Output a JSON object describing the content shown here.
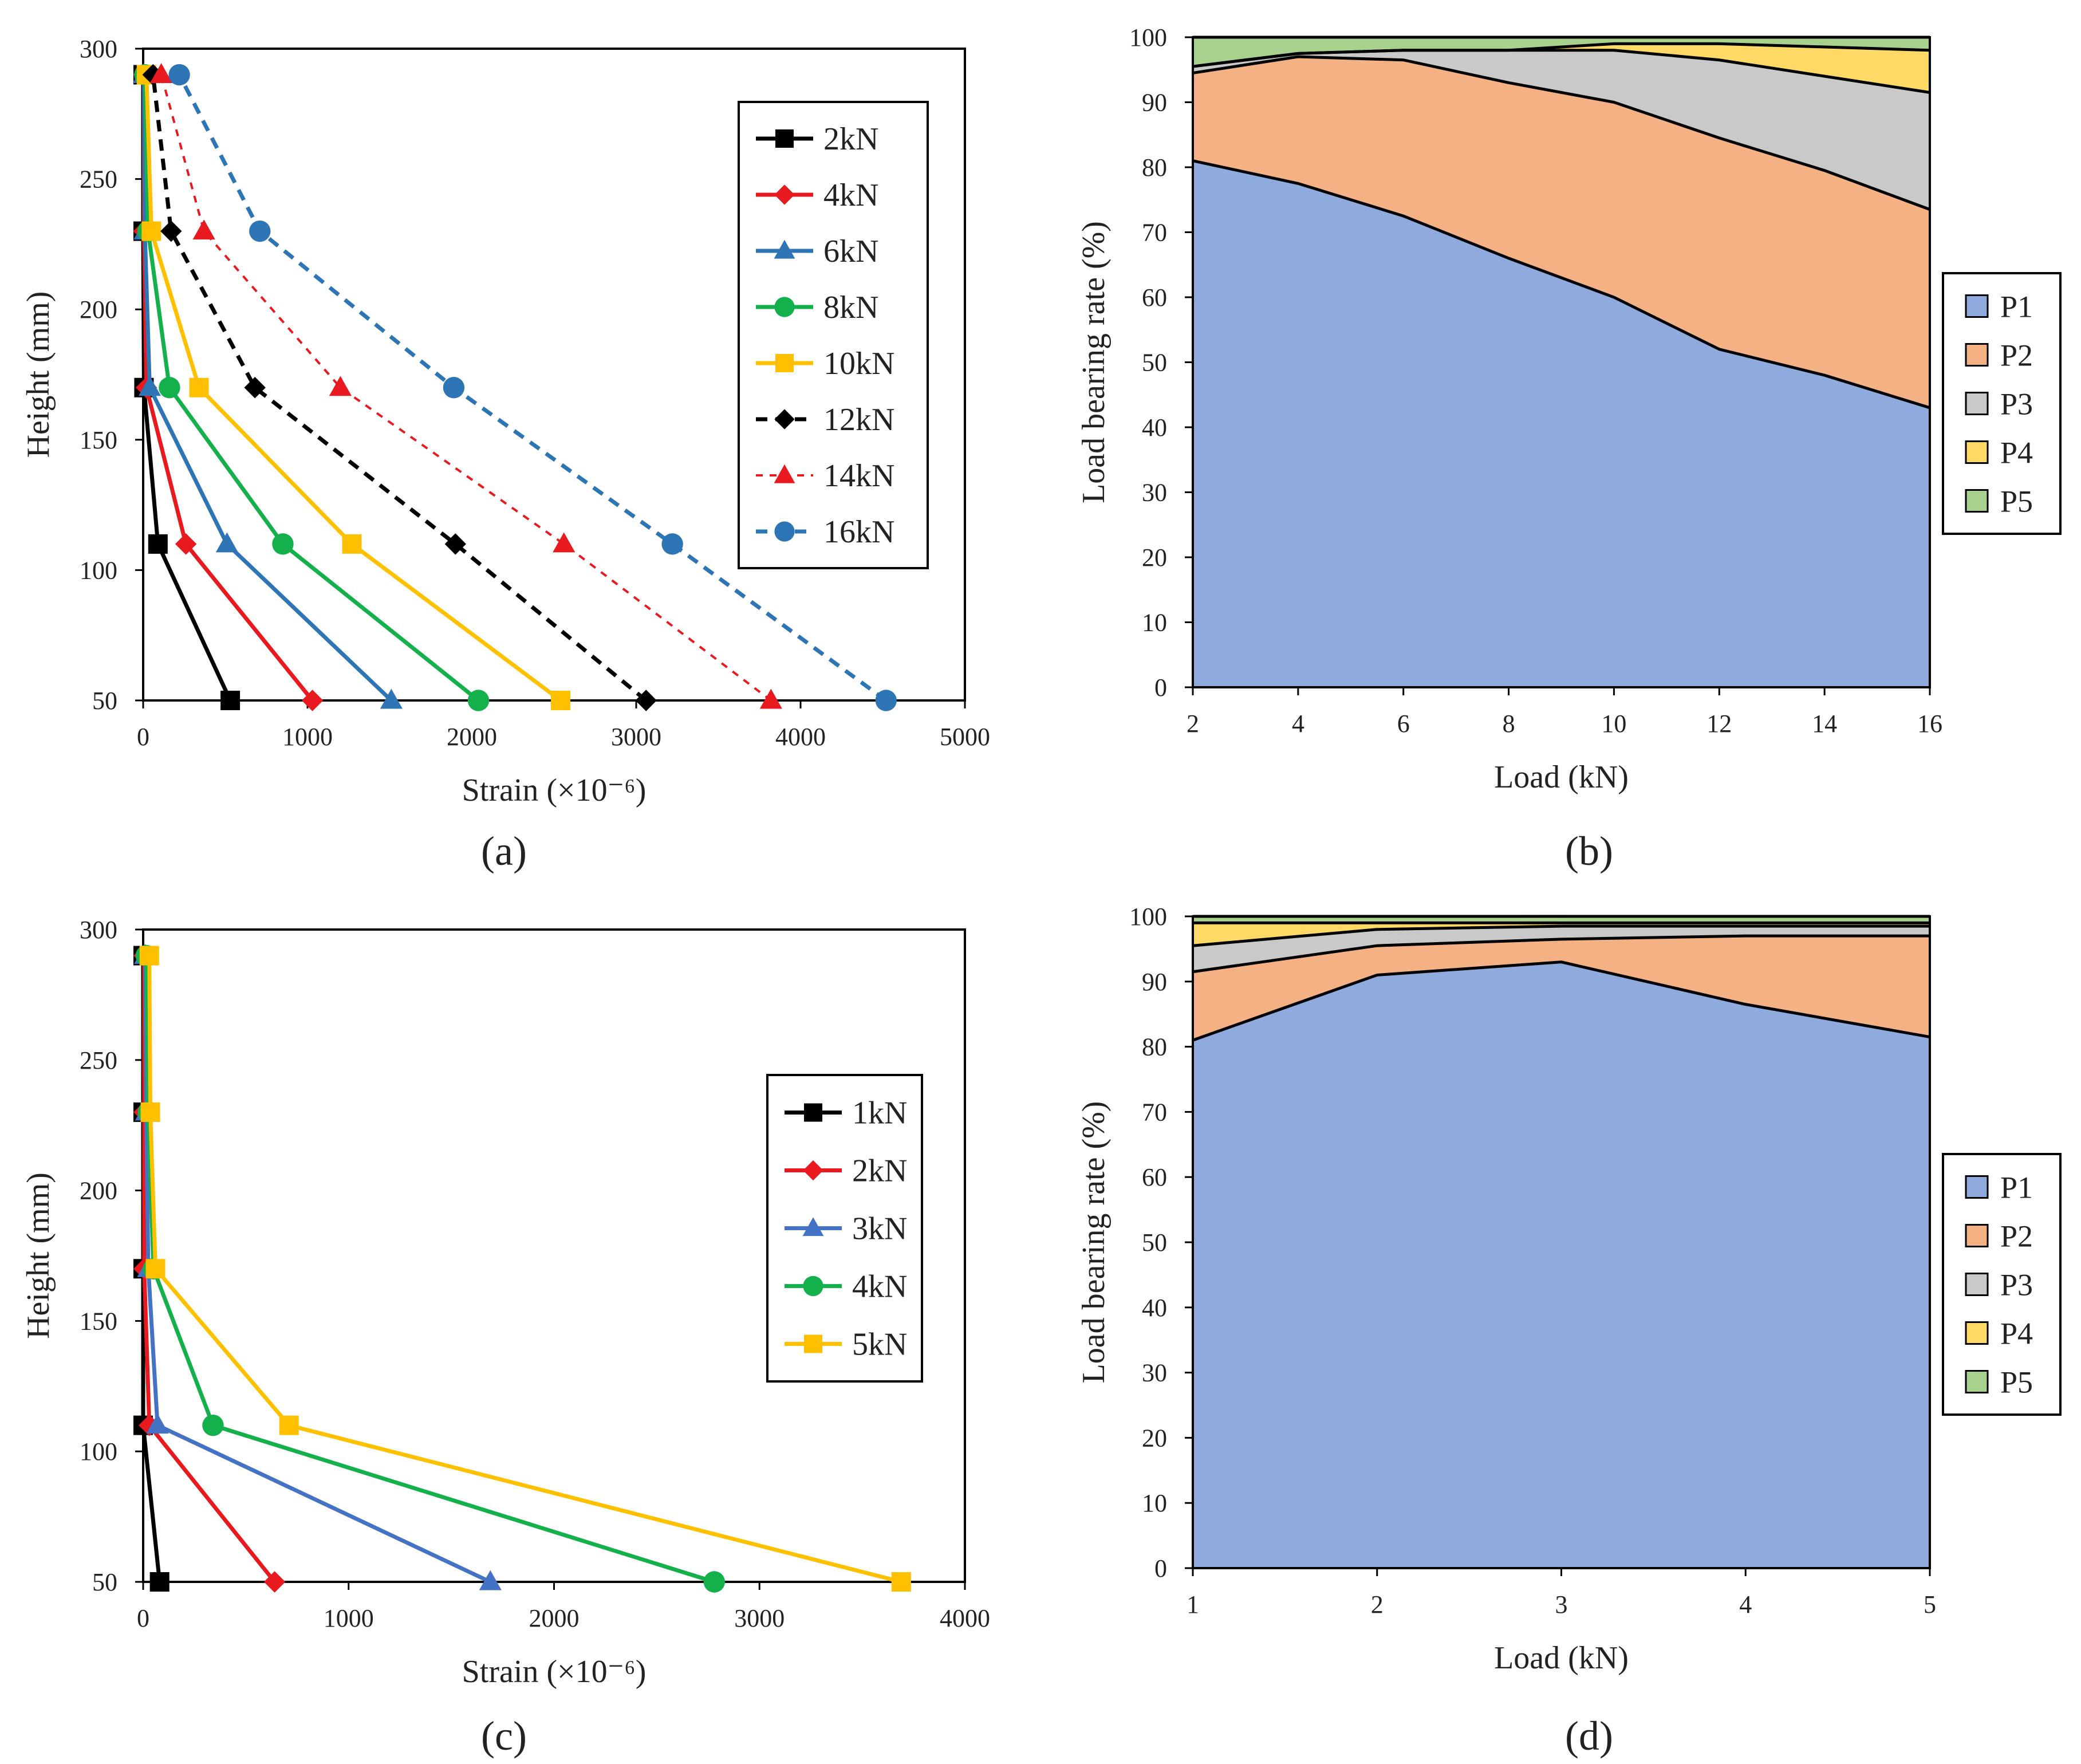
{
  "figure": {
    "panel_labels": [
      "(a)",
      "(b)",
      "(c)",
      "(d)"
    ]
  },
  "chart_data": [
    {
      "panel": "a",
      "type": "line",
      "xlabel": "Strain (×10⁻⁶)",
      "ylabel": "Height (mm)",
      "xlim": [
        0,
        5000
      ],
      "ylim": [
        50,
        300
      ],
      "xticks": [
        0,
        1000,
        2000,
        3000,
        4000,
        5000
      ],
      "yticks": [
        50,
        100,
        150,
        200,
        250,
        300
      ],
      "legend_position": "top-right",
      "series": [
        {
          "name": "2kN",
          "color": "#000000",
          "marker": "square",
          "dashed": false,
          "points": [
            [
              530,
              50
            ],
            [
              90,
              110
            ],
            [
              5,
              170
            ],
            [
              0,
              230
            ],
            [
              0,
              290
            ]
          ]
        },
        {
          "name": "4kN",
          "color": "#e8191f",
          "marker": "diamond",
          "dashed": false,
          "points": [
            [
              1030,
              50
            ],
            [
              260,
              110
            ],
            [
              20,
              170
            ],
            [
              5,
              230
            ],
            [
              5,
              290
            ]
          ]
        },
        {
          "name": "6kN",
          "color": "#2e75b6",
          "marker": "triangle",
          "dashed": false,
          "points": [
            [
              1510,
              50
            ],
            [
              510,
              110
            ],
            [
              40,
              170
            ],
            [
              10,
              230
            ],
            [
              5,
              290
            ]
          ]
        },
        {
          "name": "8kN",
          "color": "#13b04b",
          "marker": "circle",
          "dashed": false,
          "points": [
            [
              2040,
              50
            ],
            [
              850,
              110
            ],
            [
              160,
              170
            ],
            [
              30,
              230
            ],
            [
              10,
              290
            ]
          ]
        },
        {
          "name": "10kN",
          "color": "#ffc000",
          "marker": "square",
          "dashed": false,
          "points": [
            [
              2540,
              50
            ],
            [
              1270,
              110
            ],
            [
              340,
              170
            ],
            [
              50,
              230
            ],
            [
              20,
              290
            ]
          ]
        },
        {
          "name": "12kN",
          "color": "#000000",
          "marker": "diamond",
          "dashed": true,
          "points": [
            [
              3060,
              50
            ],
            [
              1900,
              110
            ],
            [
              680,
              170
            ],
            [
              170,
              230
            ],
            [
              60,
              290
            ]
          ]
        },
        {
          "name": "14kN",
          "color": "#e8191f",
          "marker": "triangle",
          "dashed": true,
          "points": [
            [
              3820,
              50
            ],
            [
              2560,
              110
            ],
            [
              1200,
              170
            ],
            [
              370,
              230
            ],
            [
              110,
              290
            ]
          ]
        },
        {
          "name": "16kN",
          "color": "#2e75b6",
          "marker": "circle",
          "dashed": true,
          "points": [
            [
              4520,
              50
            ],
            [
              3220,
              110
            ],
            [
              1890,
              170
            ],
            [
              710,
              230
            ],
            [
              220,
              290
            ]
          ]
        }
      ]
    },
    {
      "panel": "b",
      "type": "area",
      "stacked": true,
      "xlabel": "Load (kN)",
      "ylabel": "Load bearing rate (%)",
      "xlim": [
        2,
        16
      ],
      "ylim": [
        0,
        100
      ],
      "xticks": [
        2,
        4,
        6,
        8,
        10,
        12,
        14,
        16
      ],
      "yticks": [
        0,
        10,
        20,
        30,
        40,
        50,
        60,
        70,
        80,
        90,
        100
      ],
      "legend_position": "right",
      "x": [
        2,
        4,
        6,
        8,
        10,
        12,
        14,
        16
      ],
      "series": [
        {
          "name": "P1",
          "color": "#8faadc",
          "values": [
            81,
            77.5,
            72.5,
            66,
            60,
            52,
            48,
            43
          ]
        },
        {
          "name": "P2",
          "color": "#f4b183",
          "values": [
            13.5,
            19.5,
            24,
            27,
            30,
            32.5,
            31.5,
            30.5
          ]
        },
        {
          "name": "P3",
          "color": "#c9c9c9",
          "values": [
            1,
            0.5,
            1.5,
            5,
            8,
            12,
            14.5,
            18
          ]
        },
        {
          "name": "P4",
          "color": "#ffd966",
          "values": [
            0,
            0,
            0,
            0,
            1,
            2.5,
            4.5,
            6.5
          ]
        },
        {
          "name": "P5",
          "color": "#a9d18e",
          "values": [
            4.5,
            2.5,
            2,
            2,
            1,
            1,
            1.5,
            2
          ]
        }
      ]
    },
    {
      "panel": "c",
      "type": "line",
      "xlabel": "Strain (×10⁻⁶)",
      "ylabel": "Height (mm)",
      "xlim": [
        0,
        4000
      ],
      "ylim": [
        50,
        300
      ],
      "xticks": [
        0,
        1000,
        2000,
        3000,
        4000
      ],
      "yticks": [
        50,
        100,
        150,
        200,
        250,
        300
      ],
      "legend_position": "right",
      "series": [
        {
          "name": "1kN",
          "color": "#000000",
          "marker": "square",
          "dashed": false,
          "points": [
            [
              80,
              50
            ],
            [
              0,
              110
            ],
            [
              0,
              170
            ],
            [
              0,
              230
            ],
            [
              0,
              290
            ]
          ]
        },
        {
          "name": "2kN",
          "color": "#e8191f",
          "marker": "diamond",
          "dashed": false,
          "points": [
            [
              640,
              50
            ],
            [
              30,
              110
            ],
            [
              5,
              170
            ],
            [
              5,
              230
            ],
            [
              5,
              290
            ]
          ]
        },
        {
          "name": "3kN",
          "color": "#4472c4",
          "marker": "triangle",
          "dashed": false,
          "points": [
            [
              1690,
              50
            ],
            [
              70,
              110
            ],
            [
              25,
              170
            ],
            [
              15,
              230
            ],
            [
              10,
              290
            ]
          ]
        },
        {
          "name": "4kN",
          "color": "#13b04b",
          "marker": "circle",
          "dashed": false,
          "points": [
            [
              2780,
              50
            ],
            [
              340,
              110
            ],
            [
              50,
              170
            ],
            [
              25,
              230
            ],
            [
              15,
              290
            ]
          ]
        },
        {
          "name": "5kN",
          "color": "#ffc000",
          "marker": "square",
          "dashed": false,
          "points": [
            [
              3690,
              50
            ],
            [
              710,
              110
            ],
            [
              60,
              170
            ],
            [
              35,
              230
            ],
            [
              30,
              290
            ]
          ]
        }
      ]
    },
    {
      "panel": "d",
      "type": "area",
      "stacked": true,
      "xlabel": "Load (kN)",
      "ylabel": "Load bearing rate (%)",
      "xlim": [
        1,
        5
      ],
      "ylim": [
        0,
        100
      ],
      "xticks": [
        1,
        2,
        3,
        4,
        5
      ],
      "yticks": [
        0,
        10,
        20,
        30,
        40,
        50,
        60,
        70,
        80,
        90,
        100
      ],
      "legend_position": "right",
      "x": [
        1,
        2,
        3,
        4,
        5
      ],
      "series": [
        {
          "name": "P1",
          "color": "#8faadc",
          "values": [
            81,
            91,
            93,
            86.5,
            81.5
          ]
        },
        {
          "name": "P2",
          "color": "#f4b183",
          "values": [
            10.5,
            4.5,
            3.5,
            10.5,
            15.5
          ]
        },
        {
          "name": "P3",
          "color": "#c9c9c9",
          "values": [
            4,
            2.5,
            2,
            1.5,
            1.5
          ]
        },
        {
          "name": "P4",
          "color": "#ffd966",
          "values": [
            3.5,
            1,
            0.5,
            0.5,
            0.5
          ]
        },
        {
          "name": "P5",
          "color": "#a9d18e",
          "values": [
            1,
            1,
            1,
            1,
            1
          ]
        }
      ]
    }
  ]
}
